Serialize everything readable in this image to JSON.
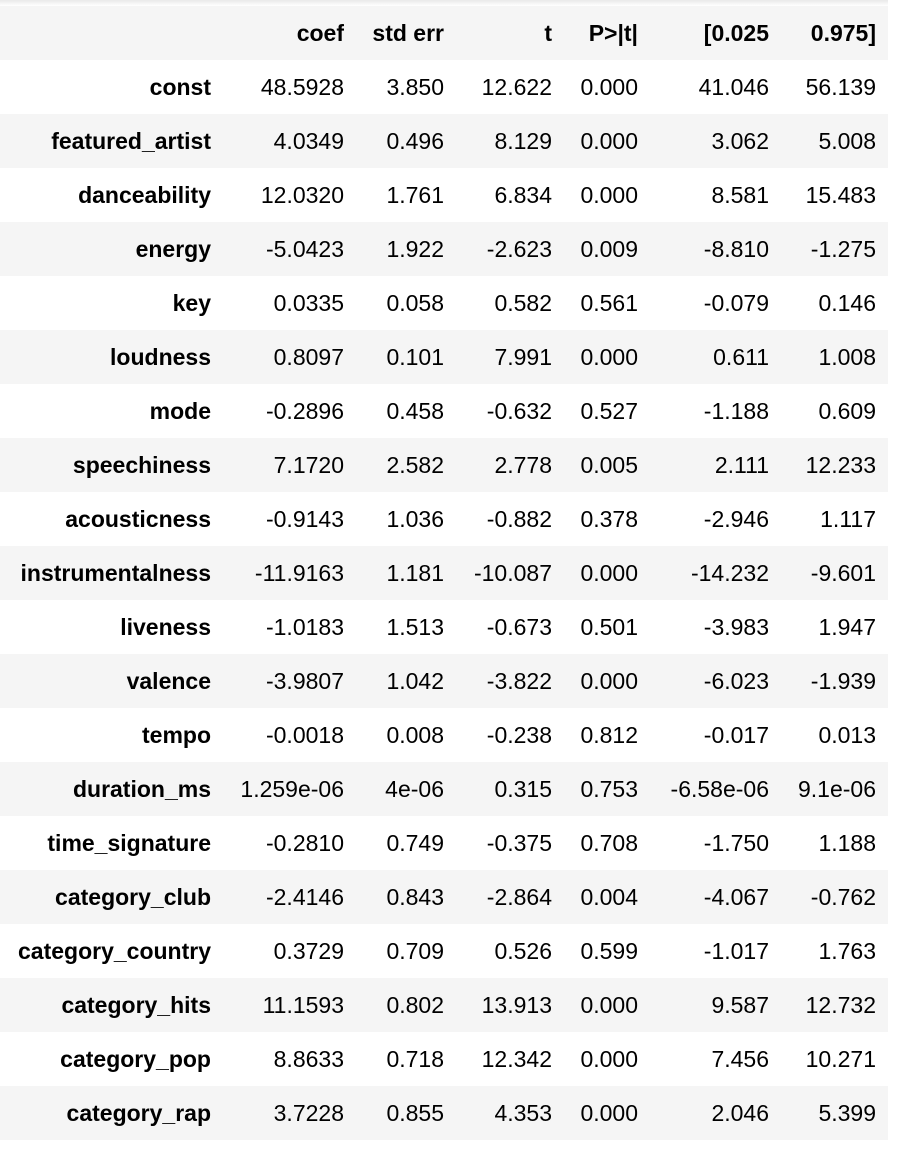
{
  "table": {
    "columns": [
      "coef",
      "std err",
      "t",
      "P>|t|",
      "[0.025",
      "0.975]"
    ],
    "rows": [
      {
        "label": "const",
        "values": [
          "48.5928",
          "3.850",
          "12.622",
          "0.000",
          "41.046",
          "56.139"
        ]
      },
      {
        "label": "featured_artist",
        "values": [
          "4.0349",
          "0.496",
          "8.129",
          "0.000",
          "3.062",
          "5.008"
        ]
      },
      {
        "label": "danceability",
        "values": [
          "12.0320",
          "1.761",
          "6.834",
          "0.000",
          "8.581",
          "15.483"
        ]
      },
      {
        "label": "energy",
        "values": [
          "-5.0423",
          "1.922",
          "-2.623",
          "0.009",
          "-8.810",
          "-1.275"
        ]
      },
      {
        "label": "key",
        "values": [
          "0.0335",
          "0.058",
          "0.582",
          "0.561",
          "-0.079",
          "0.146"
        ]
      },
      {
        "label": "loudness",
        "values": [
          "0.8097",
          "0.101",
          "7.991",
          "0.000",
          "0.611",
          "1.008"
        ]
      },
      {
        "label": "mode",
        "values": [
          "-0.2896",
          "0.458",
          "-0.632",
          "0.527",
          "-1.188",
          "0.609"
        ]
      },
      {
        "label": "speechiness",
        "values": [
          "7.1720",
          "2.582",
          "2.778",
          "0.005",
          "2.111",
          "12.233"
        ]
      },
      {
        "label": "acousticness",
        "values": [
          "-0.9143",
          "1.036",
          "-0.882",
          "0.378",
          "-2.946",
          "1.117"
        ]
      },
      {
        "label": "instrumentalness",
        "values": [
          "-11.9163",
          "1.181",
          "-10.087",
          "0.000",
          "-14.232",
          "-9.601"
        ]
      },
      {
        "label": "liveness",
        "values": [
          "-1.0183",
          "1.513",
          "-0.673",
          "0.501",
          "-3.983",
          "1.947"
        ]
      },
      {
        "label": "valence",
        "values": [
          "-3.9807",
          "1.042",
          "-3.822",
          "0.000",
          "-6.023",
          "-1.939"
        ]
      },
      {
        "label": "tempo",
        "values": [
          "-0.0018",
          "0.008",
          "-0.238",
          "0.812",
          "-0.017",
          "0.013"
        ]
      },
      {
        "label": "duration_ms",
        "values": [
          "1.259e-06",
          "4e-06",
          "0.315",
          "0.753",
          "-6.58e-06",
          "9.1e-06"
        ]
      },
      {
        "label": "time_signature",
        "values": [
          "-0.2810",
          "0.749",
          "-0.375",
          "0.708",
          "-1.750",
          "1.188"
        ]
      },
      {
        "label": "category_club",
        "values": [
          "-2.4146",
          "0.843",
          "-2.864",
          "0.004",
          "-4.067",
          "-0.762"
        ]
      },
      {
        "label": "category_country",
        "values": [
          "0.3729",
          "0.709",
          "0.526",
          "0.599",
          "-1.017",
          "1.763"
        ]
      },
      {
        "label": "category_hits",
        "values": [
          "11.1593",
          "0.802",
          "13.913",
          "0.000",
          "9.587",
          "12.732"
        ]
      },
      {
        "label": "category_pop",
        "values": [
          "8.8633",
          "0.718",
          "12.342",
          "0.000",
          "7.456",
          "10.271"
        ]
      },
      {
        "label": "category_rap",
        "values": [
          "3.7228",
          "0.855",
          "4.353",
          "0.000",
          "2.046",
          "5.399"
        ]
      }
    ]
  }
}
